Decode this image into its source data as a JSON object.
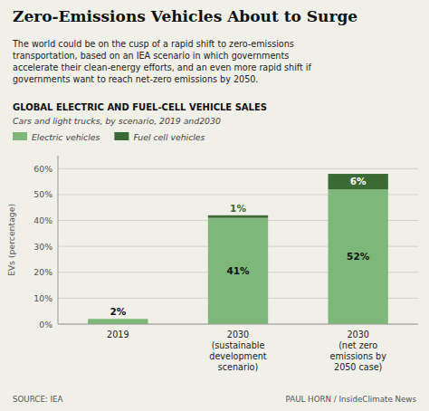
{
  "chart_data": {
    "type": "bar",
    "title": "Zero-Emissions Vehicles About to Surge",
    "subtitle": "The world could be on the cusp of a rapid shift to zero-emissions\ntransportation, based on an IEA scenario in which governments\naccelerate their clean-energy efforts, and an even more rapid shift if\ngovernments want to reach net-zero emissions by 2050.",
    "annotations": [
      "GLOBAL ELECTRIC AND FUEL-CELL VEHICLE SALES",
      "Cars and light trucks, by scenario, 2019 and2030",
      "SOURCE: IEA",
      "PAUL HORN / InsideClimate News"
    ],
    "categories": [
      "2019",
      "2030\n(sustainable\ndevelopment\nscenario)",
      "2030\n(net zero\nemissions by\n2050 case)"
    ],
    "series": [
      {
        "name": "Electric vehicles",
        "color": "#7db87a",
        "values": [
          2,
          41,
          52
        ],
        "value_labels": [
          "2%",
          "41%",
          "52%"
        ]
      },
      {
        "name": "Fuel cell vehicles",
        "color": "#3a6b35",
        "values": [
          0,
          1,
          6
        ],
        "value_labels": [
          null,
          "1%",
          "6%"
        ]
      }
    ],
    "stacked": true,
    "data_labels": true,
    "ylabel": "EVs (percentage)",
    "ylim": [
      0,
      65
    ],
    "yticks": [
      {
        "value": 0,
        "label": "0%"
      },
      {
        "value": 10,
        "label": "10%"
      },
      {
        "value": 20,
        "label": "20%"
      },
      {
        "value": 30,
        "label": "30%"
      },
      {
        "value": 40,
        "label": "40%"
      },
      {
        "value": 50,
        "label": "50%"
      },
      {
        "value": 60,
        "label": "60%"
      }
    ],
    "grid": true,
    "legend": "top"
  }
}
